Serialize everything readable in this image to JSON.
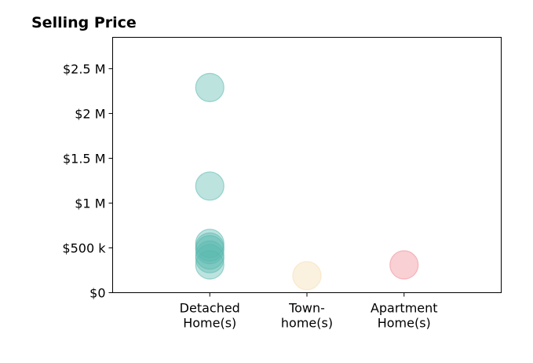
{
  "chart_data": {
    "type": "scatter",
    "title": "Selling Price",
    "xlabel": "",
    "ylabel": "",
    "categories": [
      [
        "Detached",
        "Home(s)"
      ],
      [
        "Town-",
        "home(s)"
      ],
      [
        "Apartment",
        "Home(s)"
      ]
    ],
    "x_range": [
      0,
      4
    ],
    "ylim": [
      0,
      2850000
    ],
    "y_ticks": [
      {
        "value": 0,
        "label": "$0"
      },
      {
        "value": 500000,
        "label": "$500 k"
      },
      {
        "value": 1000000,
        "label": "$1 M"
      },
      {
        "value": 1500000,
        "label": "$1.5 M"
      },
      {
        "value": 2000000,
        "label": "$2 M"
      },
      {
        "value": 2500000,
        "label": "$2.5 M"
      }
    ],
    "grid": false,
    "series": [
      {
        "category": 0,
        "color": "#5ab8ae",
        "values": [
          2290000,
          1190000,
          550000,
          510000,
          480000,
          420000,
          380000,
          310000
        ]
      },
      {
        "category": 1,
        "color": "#f5ddb0",
        "values": [
          190000
        ]
      },
      {
        "category": 2,
        "color": "#f08a94",
        "values": [
          310000
        ]
      }
    ]
  }
}
